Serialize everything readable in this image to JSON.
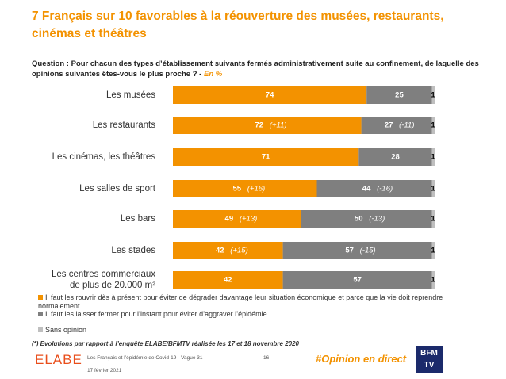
{
  "chart_data": {
    "type": "stacked_bar_horizontal",
    "title": "7 Français sur 10 favorables à la réouverture des musées, restaurants, cinémas et théâtres",
    "subtitle": "Question : Pour chacun des types d’établissement suivants fermés administrativement suite au confinement, de laquelle des opinions suivantes êtes-vous le plus proche ?",
    "unit": "En %",
    "categories": [
      "Les musées",
      "Les restaurants",
      "Les cinémas, les théâtres",
      "Les salles de sport",
      "Les bars",
      "Les stades",
      "Les centres commerciaux\nde plus de 20.000 m²"
    ],
    "xlim": [
      0,
      100
    ],
    "series": [
      {
        "name": "Il faut les rouvrir dès à présent pour éviter de dégrader davantage leur situation économique et parce que la vie doit reprendre normalement",
        "color": "#f39200",
        "values": [
          74,
          72,
          71,
          55,
          49,
          42,
          42
        ],
        "evolutions": [
          null,
          "(+11)",
          null,
          "(+16)",
          "(+13)",
          "(+15)",
          null
        ]
      },
      {
        "name": "Il faut les laisser fermer pour l’instant pour éviter d’aggraver l’épidémie",
        "color": "#7f7f7f",
        "values": [
          25,
          27,
          28,
          44,
          50,
          57,
          57
        ],
        "evolutions": [
          null,
          "(-11)",
          null,
          "(-16)",
          "(-13)",
          "(-15)",
          null
        ]
      },
      {
        "name": "Sans opinion",
        "color": "#bfbfbf",
        "values": [
          1,
          1,
          1,
          1,
          1,
          1,
          1
        ]
      }
    ],
    "footnote": "(*) Evolutions par rapport à l’enquête ELABE/BFMTV réalisée les 17 et 18 novembre 2020"
  },
  "footer": {
    "study": "Les Français et l’épidémie de Covid-19 - Vague 31",
    "page": "16",
    "date": "17 février 2021",
    "hashtag": "#Opinion en direct"
  },
  "logo": "ELABE",
  "partner": "BFM TV"
}
